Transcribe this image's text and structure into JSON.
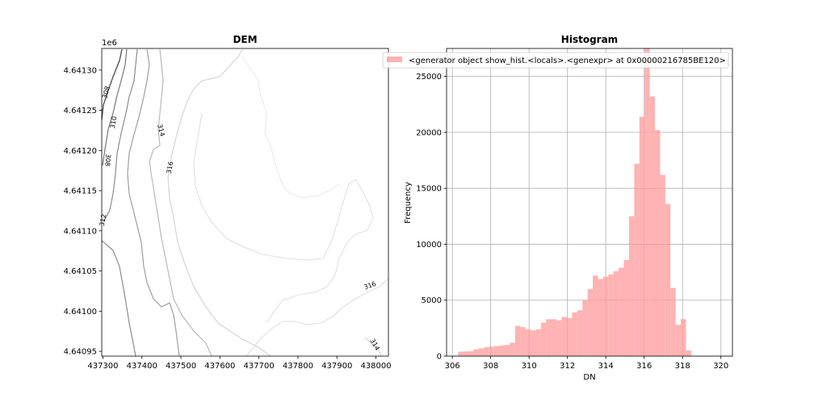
{
  "dem": {
    "title": "DEM",
    "x_ticks": [
      "437300",
      "437400",
      "437500",
      "437600",
      "437700",
      "437800",
      "437900",
      "438000"
    ],
    "x_tick_values": [
      437300,
      437400,
      437500,
      437600,
      437700,
      437800,
      437900,
      438000
    ],
    "y_ticks": [
      "4.64095",
      "4.64100",
      "4.64105",
      "4.64110",
      "4.64115",
      "4.64120",
      "4.64125",
      "4.64130"
    ],
    "y_tick_values": [
      4.64095,
      4.641,
      4.64105,
      4.6411,
      4.64115,
      4.6412,
      4.64125,
      4.6413
    ],
    "y_offset": "1e6",
    "xlim": [
      437297,
      438032
    ],
    "ylim": [
      4.640944,
      4.641327
    ],
    "contour_labels": [
      "308",
      "310",
      "308",
      "312",
      "314",
      "316",
      "316",
      "314"
    ],
    "contour_colors": {
      "dark": "#555555",
      "mid": "#8c8c8c",
      "light": "#b9b9b9",
      "pale": "#dddddd"
    }
  },
  "chart_data": {
    "type": "bar",
    "title": "Histogram",
    "xlabel": "DN",
    "ylabel": "Frequency",
    "legend": "<generator object show_hist.<locals>.<genexpr> at 0x00000216785BE120>",
    "legend_position": "upper-right",
    "color": "#ff9999",
    "alpha": 0.75,
    "grid": true,
    "xlim": [
      305.7,
      320.6
    ],
    "ylim": [
      0,
      27500
    ],
    "x_ticks": [
      "306",
      "308",
      "310",
      "312",
      "314",
      "316",
      "318",
      "320"
    ],
    "x_tick_values": [
      306,
      308,
      310,
      312,
      314,
      316,
      318,
      320
    ],
    "y_ticks": [
      "0",
      "5000",
      "10000",
      "15000",
      "20000",
      "25000"
    ],
    "y_tick_values": [
      0,
      5000,
      10000,
      15000,
      20000,
      25000
    ],
    "bin_start": 306.3,
    "bin_width": 0.27,
    "values": [
      400,
      420,
      450,
      600,
      700,
      800,
      850,
      900,
      950,
      1000,
      1200,
      2700,
      2600,
      2400,
      2300,
      2400,
      3000,
      3300,
      3300,
      3200,
      3500,
      3400,
      3900,
      4100,
      5000,
      6000,
      7200,
      6900,
      7100,
      7300,
      7600,
      7900,
      8600,
      12500,
      17200,
      21400,
      27500,
      23200,
      20200,
      16200,
      13600,
      6100,
      2800,
      3300,
      500
    ]
  }
}
